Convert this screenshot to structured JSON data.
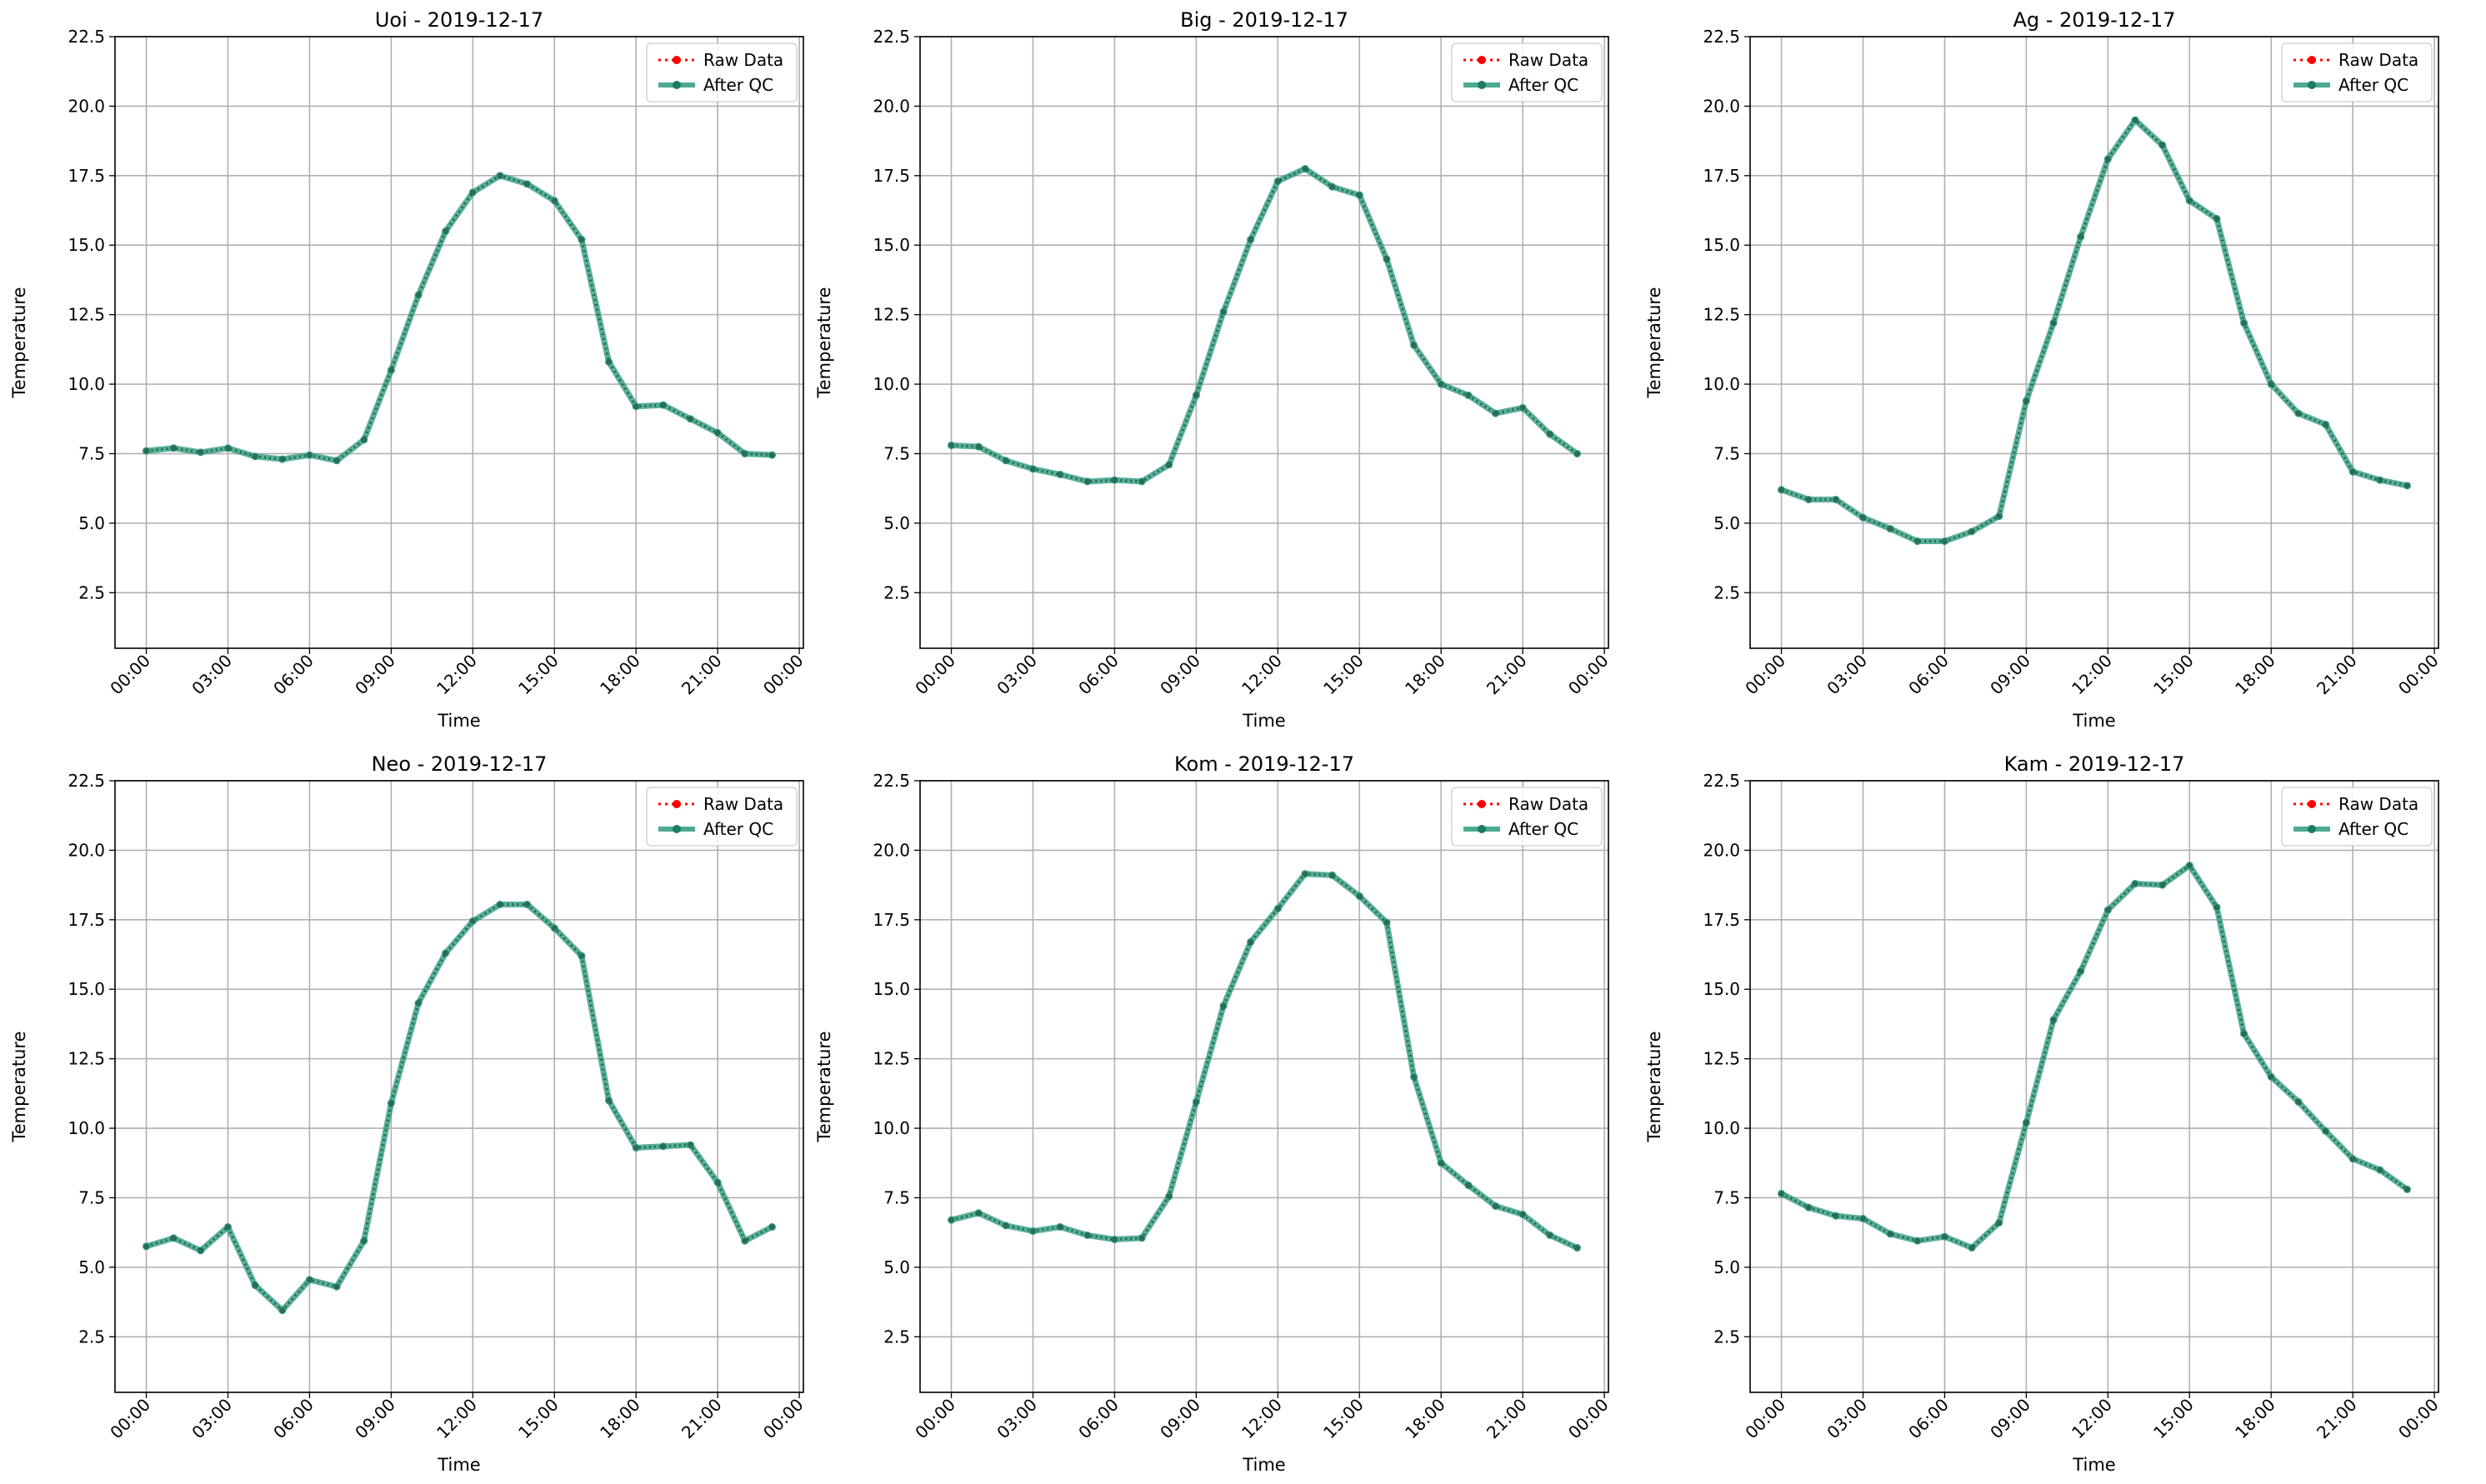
{
  "figure": {
    "date": "2019-12-17"
  },
  "chart_data": [
    {
      "type": "line",
      "title": "Uoi - 2019-12-17",
      "xlabel": "Time",
      "ylabel": "Temperature",
      "ylim": [
        0.5,
        22.5
      ],
      "yticks": [
        2.5,
        5.0,
        7.5,
        10.0,
        12.5,
        15.0,
        17.5,
        20.0,
        22.5
      ],
      "xticks": [
        "00:00",
        "03:00",
        "06:00",
        "09:00",
        "12:00",
        "15:00",
        "18:00",
        "21:00",
        "00:00"
      ],
      "x": [
        "00:00",
        "01:00",
        "02:00",
        "03:00",
        "04:00",
        "05:00",
        "06:00",
        "07:00",
        "08:00",
        "09:00",
        "10:00",
        "11:00",
        "12:00",
        "13:00",
        "14:00",
        "15:00",
        "16:00",
        "17:00",
        "18:00",
        "19:00",
        "20:00",
        "21:00",
        "22:00",
        "23:00"
      ],
      "grid": true,
      "legend": "top-right",
      "series": [
        {
          "name": "Raw Data",
          "color": "#ff0000",
          "style": "dotted-with-markers",
          "values": [
            7.6,
            7.7,
            7.55,
            7.7,
            7.4,
            7.3,
            7.45,
            7.25,
            8.0,
            10.5,
            13.2,
            15.5,
            16.9,
            17.5,
            17.2,
            16.6,
            15.2,
            10.8,
            9.2,
            9.25,
            8.75,
            8.25,
            7.5,
            7.45
          ]
        },
        {
          "name": "After QC",
          "color": "#2e9b7e",
          "style": "solid-with-markers",
          "values": [
            7.6,
            7.7,
            7.55,
            7.7,
            7.4,
            7.3,
            7.45,
            7.25,
            8.0,
            10.5,
            13.2,
            15.5,
            16.9,
            17.5,
            17.2,
            16.6,
            15.2,
            10.8,
            9.2,
            9.25,
            8.75,
            8.25,
            7.5,
            7.45
          ]
        }
      ]
    },
    {
      "type": "line",
      "title": "Big - 2019-12-17",
      "xlabel": "Time",
      "ylabel": "Temperature",
      "ylim": [
        0.5,
        22.5
      ],
      "yticks": [
        2.5,
        5.0,
        7.5,
        10.0,
        12.5,
        15.0,
        17.5,
        20.0,
        22.5
      ],
      "xticks": [
        "00:00",
        "03:00",
        "06:00",
        "09:00",
        "12:00",
        "15:00",
        "18:00",
        "21:00",
        "00:00"
      ],
      "x": [
        "00:00",
        "01:00",
        "02:00",
        "03:00",
        "04:00",
        "05:00",
        "06:00",
        "07:00",
        "08:00",
        "09:00",
        "10:00",
        "11:00",
        "12:00",
        "13:00",
        "14:00",
        "15:00",
        "16:00",
        "17:00",
        "18:00",
        "19:00",
        "20:00",
        "21:00",
        "22:00",
        "23:00"
      ],
      "grid": true,
      "legend": "top-right",
      "series": [
        {
          "name": "Raw Data",
          "color": "#ff0000",
          "style": "dotted-with-markers",
          "values": [
            7.8,
            7.75,
            7.25,
            6.95,
            6.75,
            6.5,
            6.55,
            6.5,
            7.1,
            9.6,
            12.6,
            15.2,
            17.3,
            17.75,
            17.1,
            16.8,
            14.5,
            11.4,
            10.0,
            9.6,
            8.95,
            9.15,
            8.2,
            7.5
          ]
        },
        {
          "name": "After QC",
          "color": "#2e9b7e",
          "style": "solid-with-markers",
          "values": [
            7.8,
            7.75,
            7.25,
            6.95,
            6.75,
            6.5,
            6.55,
            6.5,
            7.1,
            9.6,
            12.6,
            15.2,
            17.3,
            17.75,
            17.1,
            16.8,
            14.5,
            11.4,
            10.0,
            9.6,
            8.95,
            9.15,
            8.2,
            7.5
          ]
        }
      ]
    },
    {
      "type": "line",
      "title": "Ag - 2019-12-17",
      "xlabel": "Time",
      "ylabel": "Temperature",
      "ylim": [
        0.5,
        22.5
      ],
      "yticks": [
        2.5,
        5.0,
        7.5,
        10.0,
        12.5,
        15.0,
        17.5,
        20.0,
        22.5
      ],
      "xticks": [
        "00:00",
        "03:00",
        "06:00",
        "09:00",
        "12:00",
        "15:00",
        "18:00",
        "21:00",
        "00:00"
      ],
      "x": [
        "00:00",
        "01:00",
        "02:00",
        "03:00",
        "04:00",
        "05:00",
        "06:00",
        "07:00",
        "08:00",
        "09:00",
        "10:00",
        "11:00",
        "12:00",
        "13:00",
        "14:00",
        "15:00",
        "16:00",
        "17:00",
        "18:00",
        "19:00",
        "20:00",
        "21:00",
        "22:00",
        "23:00"
      ],
      "grid": true,
      "legend": "top-right",
      "series": [
        {
          "name": "Raw Data",
          "color": "#ff0000",
          "style": "dotted-with-markers",
          "values": [
            6.2,
            5.85,
            5.85,
            5.2,
            4.8,
            4.35,
            4.35,
            4.7,
            5.25,
            9.4,
            12.2,
            15.3,
            18.1,
            19.5,
            18.6,
            16.6,
            15.95,
            12.2,
            10.0,
            8.95,
            8.55,
            6.85,
            6.55,
            6.35
          ]
        },
        {
          "name": "After QC",
          "color": "#2e9b7e",
          "style": "solid-with-markers",
          "values": [
            6.2,
            5.85,
            5.85,
            5.2,
            4.8,
            4.35,
            4.35,
            4.7,
            5.25,
            9.4,
            12.2,
            15.3,
            18.1,
            19.5,
            18.6,
            16.6,
            15.95,
            12.2,
            10.0,
            8.95,
            8.55,
            6.85,
            6.55,
            6.35
          ]
        }
      ]
    },
    {
      "type": "line",
      "title": "Neo - 2019-12-17",
      "xlabel": "Time",
      "ylabel": "Temperature",
      "ylim": [
        0.5,
        22.5
      ],
      "yticks": [
        2.5,
        5.0,
        7.5,
        10.0,
        12.5,
        15.0,
        17.5,
        20.0,
        22.5
      ],
      "xticks": [
        "00:00",
        "03:00",
        "06:00",
        "09:00",
        "12:00",
        "15:00",
        "18:00",
        "21:00",
        "00:00"
      ],
      "x": [
        "00:00",
        "01:00",
        "02:00",
        "03:00",
        "04:00",
        "05:00",
        "06:00",
        "07:00",
        "08:00",
        "09:00",
        "10:00",
        "11:00",
        "12:00",
        "13:00",
        "14:00",
        "15:00",
        "16:00",
        "17:00",
        "18:00",
        "19:00",
        "20:00",
        "21:00",
        "22:00",
        "23:00"
      ],
      "grid": true,
      "legend": "top-right",
      "series": [
        {
          "name": "Raw Data",
          "color": "#ff0000",
          "style": "dotted-with-markers",
          "values": [
            5.75,
            6.05,
            5.6,
            6.45,
            4.35,
            3.45,
            4.55,
            4.3,
            5.95,
            10.9,
            14.5,
            16.3,
            17.45,
            18.05,
            18.05,
            17.2,
            16.2,
            11.0,
            9.3,
            9.35,
            9.4,
            8.05,
            5.95,
            6.45
          ]
        },
        {
          "name": "After QC",
          "color": "#2e9b7e",
          "style": "solid-with-markers",
          "values": [
            5.75,
            6.05,
            5.6,
            6.45,
            4.35,
            3.45,
            4.55,
            4.3,
            5.95,
            10.9,
            14.5,
            16.3,
            17.45,
            18.05,
            18.05,
            17.2,
            16.2,
            11.0,
            9.3,
            9.35,
            9.4,
            8.05,
            5.95,
            6.45
          ]
        }
      ]
    },
    {
      "type": "line",
      "title": "Kom - 2019-12-17",
      "xlabel": "Time",
      "ylabel": "Temperature",
      "ylim": [
        0.5,
        22.5
      ],
      "yticks": [
        2.5,
        5.0,
        7.5,
        10.0,
        12.5,
        15.0,
        17.5,
        20.0,
        22.5
      ],
      "xticks": [
        "00:00",
        "03:00",
        "06:00",
        "09:00",
        "12:00",
        "15:00",
        "18:00",
        "21:00",
        "00:00"
      ],
      "x": [
        "00:00",
        "01:00",
        "02:00",
        "03:00",
        "04:00",
        "05:00",
        "06:00",
        "07:00",
        "08:00",
        "09:00",
        "10:00",
        "11:00",
        "12:00",
        "13:00",
        "14:00",
        "15:00",
        "16:00",
        "17:00",
        "18:00",
        "19:00",
        "20:00",
        "21:00",
        "22:00",
        "23:00"
      ],
      "grid": true,
      "legend": "top-right",
      "series": [
        {
          "name": "Raw Data",
          "color": "#ff0000",
          "style": "dotted-with-markers",
          "values": [
            6.7,
            6.95,
            6.5,
            6.3,
            6.45,
            6.15,
            6.0,
            6.05,
            7.55,
            10.95,
            14.4,
            16.7,
            17.9,
            19.15,
            19.1,
            18.35,
            17.4,
            11.85,
            8.75,
            7.95,
            7.2,
            6.9,
            6.15,
            5.7
          ]
        },
        {
          "name": "After QC",
          "color": "#2e9b7e",
          "style": "solid-with-markers",
          "values": [
            6.7,
            6.95,
            6.5,
            6.3,
            6.45,
            6.15,
            6.0,
            6.05,
            7.55,
            10.95,
            14.4,
            16.7,
            17.9,
            19.15,
            19.1,
            18.35,
            17.4,
            11.85,
            8.75,
            7.95,
            7.2,
            6.9,
            6.15,
            5.7
          ]
        }
      ]
    },
    {
      "type": "line",
      "title": "Kam - 2019-12-17",
      "xlabel": "Time",
      "ylabel": "Temperature",
      "ylim": [
        0.5,
        22.5
      ],
      "yticks": [
        2.5,
        5.0,
        7.5,
        10.0,
        12.5,
        15.0,
        17.5,
        20.0,
        22.5
      ],
      "xticks": [
        "00:00",
        "03:00",
        "06:00",
        "09:00",
        "12:00",
        "15:00",
        "18:00",
        "21:00",
        "00:00"
      ],
      "x": [
        "00:00",
        "01:00",
        "02:00",
        "03:00",
        "04:00",
        "05:00",
        "06:00",
        "07:00",
        "08:00",
        "09:00",
        "10:00",
        "11:00",
        "12:00",
        "13:00",
        "14:00",
        "15:00",
        "16:00",
        "17:00",
        "18:00",
        "19:00",
        "20:00",
        "21:00",
        "22:00",
        "23:00"
      ],
      "grid": true,
      "legend": "top-right",
      "series": [
        {
          "name": "Raw Data",
          "color": "#ff0000",
          "style": "dotted-with-markers",
          "values": [
            7.65,
            7.15,
            6.85,
            6.75,
            6.2,
            5.95,
            6.1,
            5.7,
            6.6,
            10.2,
            13.9,
            15.65,
            17.85,
            18.8,
            18.75,
            19.45,
            17.95,
            13.4,
            11.85,
            10.95,
            9.9,
            8.9,
            8.5,
            7.8
          ]
        },
        {
          "name": "After QC",
          "color": "#2e9b7e",
          "style": "solid-with-markers",
          "values": [
            7.65,
            7.15,
            6.85,
            6.75,
            6.2,
            5.95,
            6.1,
            5.7,
            6.6,
            10.2,
            13.9,
            15.65,
            17.85,
            18.8,
            18.75,
            19.45,
            17.95,
            13.4,
            11.85,
            10.95,
            9.9,
            8.9,
            8.5,
            7.8
          ]
        }
      ]
    }
  ]
}
